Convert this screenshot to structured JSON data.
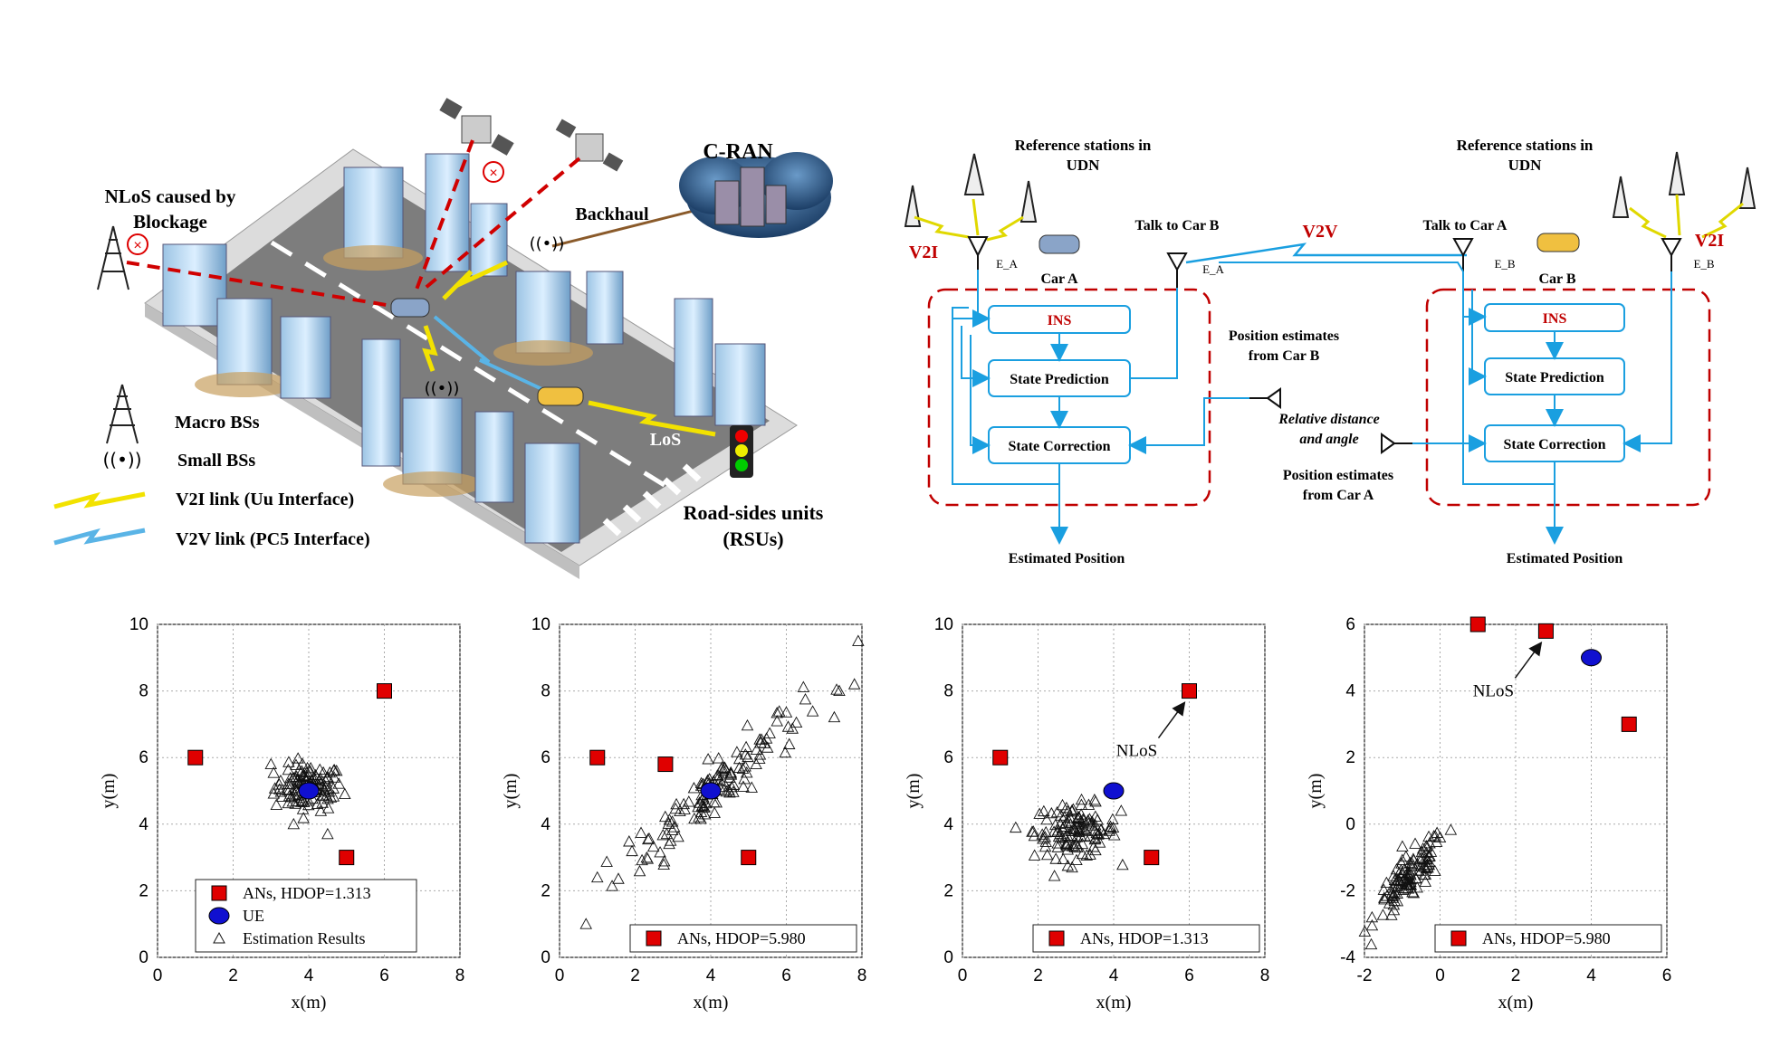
{
  "city": {
    "nlos_label_1": "NLoS caused by",
    "nlos_label_2": "Blockage",
    "cran": "C-RAN",
    "backhaul": "Backhaul",
    "los": "LoS",
    "legend": {
      "macro": "Macro BSs",
      "small": "Small BSs",
      "v2i": "V2I link (Uu Interface)",
      "v2v": "V2V link (PC5 Interface)",
      "rsu_1": "Road-sides units",
      "rsu_2": "(RSUs)"
    }
  },
  "block": {
    "ref_left_1": "Reference stations in",
    "ref_left_2": "UDN",
    "ref_right_1": "Reference stations in",
    "ref_right_2": "UDN",
    "v2i_left": "V2I",
    "v2i_right": "V2I",
    "v2v": "V2V",
    "e_a_1": "E_A",
    "e_a_2": "E_A",
    "e_b_1": "E_B",
    "e_b_2": "E_B",
    "car_a": "Car A",
    "car_b": "Car B",
    "talk_b": "Talk to Car B",
    "talk_a": "Talk to Car A",
    "ins": "INS",
    "state_pred": "State Prediction",
    "state_corr": "State Correction",
    "pos_from_b_1": "Position estimates",
    "pos_from_b_2": "from Car B",
    "rel_1": "Relative distance",
    "rel_2": "and angle",
    "pos_from_a_1": "Position estimates",
    "pos_from_a_2": "from Car A",
    "est_left": "Estimated Position",
    "est_right": "Estimated Position"
  },
  "colors": {
    "accent_red": "#c00000",
    "flow_blue": "#1a9fe0",
    "anchor_red": "#e00000",
    "ue_blue": "#1010d0"
  },
  "chart_data": [
    {
      "type": "scatter",
      "xlim": [
        0,
        8
      ],
      "ylim": [
        0,
        10
      ],
      "xticks": [
        0,
        2,
        4,
        6,
        8
      ],
      "yticks": [
        0,
        2,
        4,
        6,
        8,
        10
      ],
      "xlabel": "x(m)",
      "ylabel": "y(m)",
      "grid": true,
      "anchors": [
        [
          1,
          6
        ],
        [
          6,
          8
        ],
        [
          5,
          3
        ]
      ],
      "ue": [
        4,
        5
      ],
      "cloud": {
        "center": [
          4,
          5.1
        ],
        "spread": [
          0.45,
          0.35
        ],
        "count": 110
      },
      "outliers": [
        [
          3.0,
          5.8
        ],
        [
          3.6,
          4.0
        ],
        [
          4.5,
          3.7
        ]
      ],
      "legend": [
        "ANs, HDOP=1.313",
        "UE",
        "Estimation Results"
      ]
    },
    {
      "type": "scatter",
      "xlim": [
        0,
        8
      ],
      "ylim": [
        0,
        10
      ],
      "xticks": [
        0,
        2,
        4,
        6,
        8
      ],
      "yticks": [
        0,
        2,
        4,
        6,
        8,
        10
      ],
      "xlabel": "x(m)",
      "ylabel": "y(m)",
      "grid": true,
      "anchors": [
        [
          1,
          6
        ],
        [
          2.8,
          5.8
        ],
        [
          5,
          3
        ]
      ],
      "ue": [
        4,
        5
      ],
      "cloud": {
        "center": [
          4,
          5
        ],
        "spread": [
          1.2,
          0.45
        ],
        "count": 130,
        "slope": 0.95
      },
      "outliers": [
        [
          0.7,
          1.0
        ],
        [
          1.0,
          2.4
        ],
        [
          7.4,
          8.0
        ],
        [
          7.8,
          8.2
        ],
        [
          7.9,
          9.5
        ]
      ],
      "legend": [
        "ANs, HDOP=5.980"
      ]
    },
    {
      "type": "scatter",
      "xlim": [
        0,
        8
      ],
      "ylim": [
        0,
        10
      ],
      "xticks": [
        0,
        2,
        4,
        6,
        8
      ],
      "yticks": [
        0,
        2,
        4,
        6,
        8,
        10
      ],
      "xlabel": "x(m)",
      "ylabel": "y(m)",
      "grid": true,
      "anchors": [
        [
          1,
          6
        ],
        [
          6,
          8
        ],
        [
          5,
          3
        ]
      ],
      "ue": [
        4,
        5
      ],
      "cloud": {
        "center": [
          3.0,
          3.8
        ],
        "spread": [
          0.55,
          0.4
        ],
        "count": 120
      },
      "outliers": [
        [
          4.2,
          4.4
        ],
        [
          2.9,
          2.7
        ]
      ],
      "annotation": {
        "text": "NLoS",
        "target": [
          6,
          8
        ]
      },
      "legend": [
        "ANs, HDOP=1.313"
      ]
    },
    {
      "type": "scatter",
      "xlim": [
        -2,
        6
      ],
      "ylim": [
        -4,
        6
      ],
      "xticks": [
        -2,
        0,
        2,
        4,
        6
      ],
      "yticks": [
        -4,
        -2,
        0,
        2,
        4,
        6
      ],
      "xlabel": "x(m)",
      "ylabel": "y(m)",
      "grid": true,
      "anchors": [
        [
          1,
          6
        ],
        [
          2.8,
          5.8
        ],
        [
          5,
          3
        ]
      ],
      "ue": [
        4,
        5
      ],
      "cloud": {
        "center": [
          -0.8,
          -1.6
        ],
        "spread": [
          0.45,
          0.35
        ],
        "count": 110,
        "slope": 1.1
      },
      "outliers": [
        [
          -1.8,
          -2.8
        ],
        [
          0,
          -0.4
        ]
      ],
      "annotation": {
        "text": "NLoS",
        "target": [
          2.8,
          5.8
        ]
      },
      "legend": [
        "ANs, HDOP=5.980"
      ]
    }
  ]
}
